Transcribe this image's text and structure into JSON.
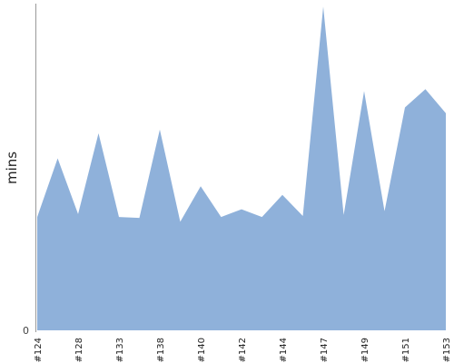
{
  "colors": {
    "area_fill": "#8fb1da",
    "axis": "#999999",
    "background": "#ffffff"
  },
  "chart_data": {
    "type": "area",
    "title": "",
    "xlabel": "",
    "ylabel": "mins",
    "ylim": [
      0,
      34
    ],
    "y_tick_labels": [
      "0"
    ],
    "x_tick_labels": [
      "#124",
      "#128",
      "#133",
      "#138",
      "#140",
      "#142",
      "#144",
      "#147",
      "#149",
      "#151",
      "#153"
    ],
    "grid": false,
    "legend": "none",
    "points": [
      {
        "x": 0,
        "y": 11.8
      },
      {
        "x": 1,
        "y": 17.9
      },
      {
        "x": 2,
        "y": 12.1
      },
      {
        "x": 3,
        "y": 20.5
      },
      {
        "x": 4,
        "y": 11.8
      },
      {
        "x": 5,
        "y": 11.7
      },
      {
        "x": 6,
        "y": 20.9
      },
      {
        "x": 7,
        "y": 11.3
      },
      {
        "x": 8,
        "y": 15.0
      },
      {
        "x": 9,
        "y": 11.8
      },
      {
        "x": 10,
        "y": 12.6
      },
      {
        "x": 11,
        "y": 11.8
      },
      {
        "x": 12,
        "y": 14.1
      },
      {
        "x": 13,
        "y": 11.9
      },
      {
        "x": 14,
        "y": 33.7
      },
      {
        "x": 15,
        "y": 12.0
      },
      {
        "x": 16,
        "y": 24.9
      },
      {
        "x": 17,
        "y": 12.4
      },
      {
        "x": 18,
        "y": 23.2
      },
      {
        "x": 19,
        "y": 25.1
      },
      {
        "x": 20,
        "y": 22.6
      }
    ],
    "tick_positions": [
      0,
      2,
      4,
      6,
      8,
      10,
      12,
      14,
      16,
      18,
      20
    ]
  }
}
